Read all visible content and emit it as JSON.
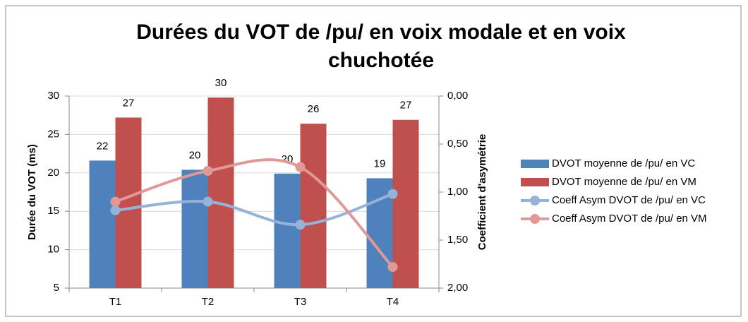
{
  "chart_data": {
    "type": "bar_line",
    "title": "Durées du VOT de /pu/ en voix modale et en voix chuchotée",
    "ylabel": "Durée du VOT (ms)",
    "y2label": "Coefficient d'asymétrie",
    "categories": [
      "T1",
      "T2",
      "T3",
      "T4"
    ],
    "ylim": [
      5,
      30
    ],
    "yticks": [
      5,
      10,
      15,
      20,
      25,
      30
    ],
    "y2lim": [
      0,
      2
    ],
    "y2_reversed": true,
    "y2ticks": [
      {
        "value": 0,
        "label": "0,00"
      },
      {
        "value": 0.5,
        "label": "0,50"
      },
      {
        "value": 1,
        "label": "1,00"
      },
      {
        "value": 1.5,
        "label": "1,50"
      },
      {
        "value": 2,
        "label": "2,00"
      }
    ],
    "grid": true,
    "legend": "right",
    "series": [
      {
        "name": "DVOT moyenne de /pu/ en VC",
        "kind": "bar",
        "color": "#4f81bd",
        "values": [
          21.6,
          20.4,
          19.9,
          19.3
        ],
        "value_labels": [
          "22",
          "20",
          "20",
          "19"
        ]
      },
      {
        "name": "DVOT moyenne de /pu/ en VM",
        "kind": "bar",
        "color": "#c0504d",
        "values": [
          27.2,
          29.8,
          26.4,
          26.9
        ],
        "value_labels": [
          "27",
          "30",
          "26",
          "27"
        ]
      },
      {
        "name": "Coeff Asym DVOT de /pu/ en VC",
        "kind": "line",
        "axis": "y2",
        "color": "#95b3d7",
        "values": [
          1.19,
          1.1,
          1.34,
          1.02
        ]
      },
      {
        "name": "Coeff Asym DVOT de /pu/ en VM",
        "kind": "line",
        "axis": "y2",
        "color": "#e09996",
        "values": [
          1.1,
          0.78,
          0.74,
          1.78
        ]
      }
    ]
  }
}
